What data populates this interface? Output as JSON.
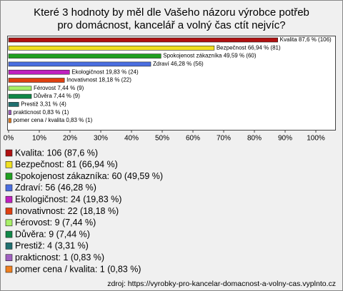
{
  "chart_data": {
    "type": "bar",
    "orientation": "horizontal",
    "title": "Které 3 hodnoty by měl dle Vašeho názoru výrobce potřeb pro domácnost, kancelář a volný čas ctít nejvíc?",
    "categories": [
      "Kvalita",
      "Bezpečnost",
      "Spokojenost zákazníka",
      "Zdraví",
      "Ekologičnost",
      "Inovativnost",
      "Férovost",
      "Důvěra",
      "Prestiž",
      "prakticnost",
      "pomer cena / kvalita"
    ],
    "values": [
      87.6,
      66.94,
      49.59,
      46.28,
      19.83,
      18.18,
      7.44,
      7.44,
      3.31,
      0.83,
      0.83
    ],
    "value_labels": [
      "Kvalita 87,6 % (106)",
      "Bezpečnost 66,94 % (81)",
      "Spokojenost zákazníka 49,59 % (60)",
      "Zdraví 46,28 % (56)",
      "Ekologičnost 19,83 % (24)",
      "Inovativnost 18,18 % (22)",
      "Férovost 7,44 % (9)",
      "Důvěra 7,44 % (9)",
      "Prestiž 3,31 % (4)",
      "prakticnost 0,83 % (1)",
      "pomer cena / kvalita 0,83 % (1)"
    ],
    "colors": [
      "#b01010",
      "#f0e020",
      "#20a020",
      "#4a6ee0",
      "#c020c0",
      "#e04010",
      "#a8f068",
      "#108848",
      "#207070",
      "#a060c0",
      "#f08020"
    ],
    "legend": [
      "Kvalita: 106 (87,6 %)",
      "Bezpečnost: 81 (66,94 %)",
      "Spokojenost zákazníka: 60 (49,59 %)",
      "Zdraví: 56 (46,28 %)",
      "Ekologičnost: 24 (19,83 %)",
      "Inovativnost: 22 (18,18 %)",
      "Férovost: 9 (7,44 %)",
      "Důvěra: 9 (7,44 %)",
      "Prestiž: 4 (3,31 %)",
      "prakticnost: 1 (0,83 %)",
      "pomer cena / kvalita: 1 (0,83 %)"
    ],
    "xlim": [
      0,
      100
    ],
    "xticks": [
      {
        "value": 0,
        "label": "0%"
      },
      {
        "value": 10,
        "label": "10%"
      },
      {
        "value": 20,
        "label": "20%"
      },
      {
        "value": 30,
        "label": "30%"
      },
      {
        "value": 40,
        "label": "40%"
      },
      {
        "value": 50,
        "label": "50%"
      },
      {
        "value": 60,
        "label": "60%"
      },
      {
        "value": 70,
        "label": "70%"
      },
      {
        "value": 80,
        "label": "80%"
      },
      {
        "value": 90,
        "label": "90%"
      },
      {
        "value": 100,
        "label": "100%"
      }
    ],
    "source": "zdroj: https://vyrobky-pro-kancelar-domacnost-a-volny-cas.vyplnto.cz"
  }
}
